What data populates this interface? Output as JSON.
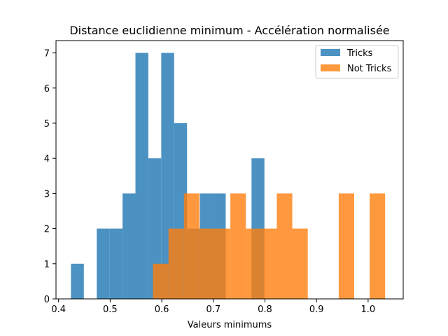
{
  "chart_data": {
    "type": "histogram",
    "title": "Distance euclidienne minimum - Accélération normalisée",
    "xlabel": "Valeurs minimums",
    "ylabel": "",
    "xlim": [
      0.395,
      1.068
    ],
    "ylim": [
      0,
      7.35
    ],
    "xticks": [
      "0.4",
      "0.5",
      "0.6",
      "0.7",
      "0.8",
      "0.9",
      "1.0"
    ],
    "yticks": [
      "0",
      "1",
      "2",
      "3",
      "4",
      "5",
      "6",
      "7"
    ],
    "legend_position": "top-right",
    "series": [
      {
        "name": "Tricks",
        "color": "#1f77b4",
        "bins": [
          {
            "x0": 0.424,
            "x1": 0.449,
            "count": 1
          },
          {
            "x0": 0.474,
            "x1": 0.499,
            "count": 2
          },
          {
            "x0": 0.499,
            "x1": 0.524,
            "count": 2
          },
          {
            "x0": 0.524,
            "x1": 0.549,
            "count": 3
          },
          {
            "x0": 0.549,
            "x1": 0.574,
            "count": 7
          },
          {
            "x0": 0.574,
            "x1": 0.599,
            "count": 4
          },
          {
            "x0": 0.599,
            "x1": 0.624,
            "count": 7
          },
          {
            "x0": 0.624,
            "x1": 0.649,
            "count": 5
          },
          {
            "x0": 0.649,
            "x1": 0.674,
            "count": 2
          },
          {
            "x0": 0.674,
            "x1": 0.699,
            "count": 3
          },
          {
            "x0": 0.699,
            "x1": 0.724,
            "count": 3
          },
          {
            "x0": 0.774,
            "x1": 0.799,
            "count": 4
          }
        ]
      },
      {
        "name": "Not Tricks",
        "color": "#ff7f0e",
        "bins": [
          {
            "x0": 0.583,
            "x1": 0.613,
            "count": 1
          },
          {
            "x0": 0.613,
            "x1": 0.643,
            "count": 2
          },
          {
            "x0": 0.643,
            "x1": 0.673,
            "count": 3
          },
          {
            "x0": 0.673,
            "x1": 0.703,
            "count": 2
          },
          {
            "x0": 0.703,
            "x1": 0.733,
            "count": 2
          },
          {
            "x0": 0.733,
            "x1": 0.763,
            "count": 3
          },
          {
            "x0": 0.763,
            "x1": 0.793,
            "count": 2
          },
          {
            "x0": 0.793,
            "x1": 0.823,
            "count": 2
          },
          {
            "x0": 0.823,
            "x1": 0.853,
            "count": 3
          },
          {
            "x0": 0.853,
            "x1": 0.883,
            "count": 2
          },
          {
            "x0": 0.943,
            "x1": 0.973,
            "count": 3
          },
          {
            "x0": 1.003,
            "x1": 1.033,
            "count": 3
          }
        ]
      }
    ]
  }
}
